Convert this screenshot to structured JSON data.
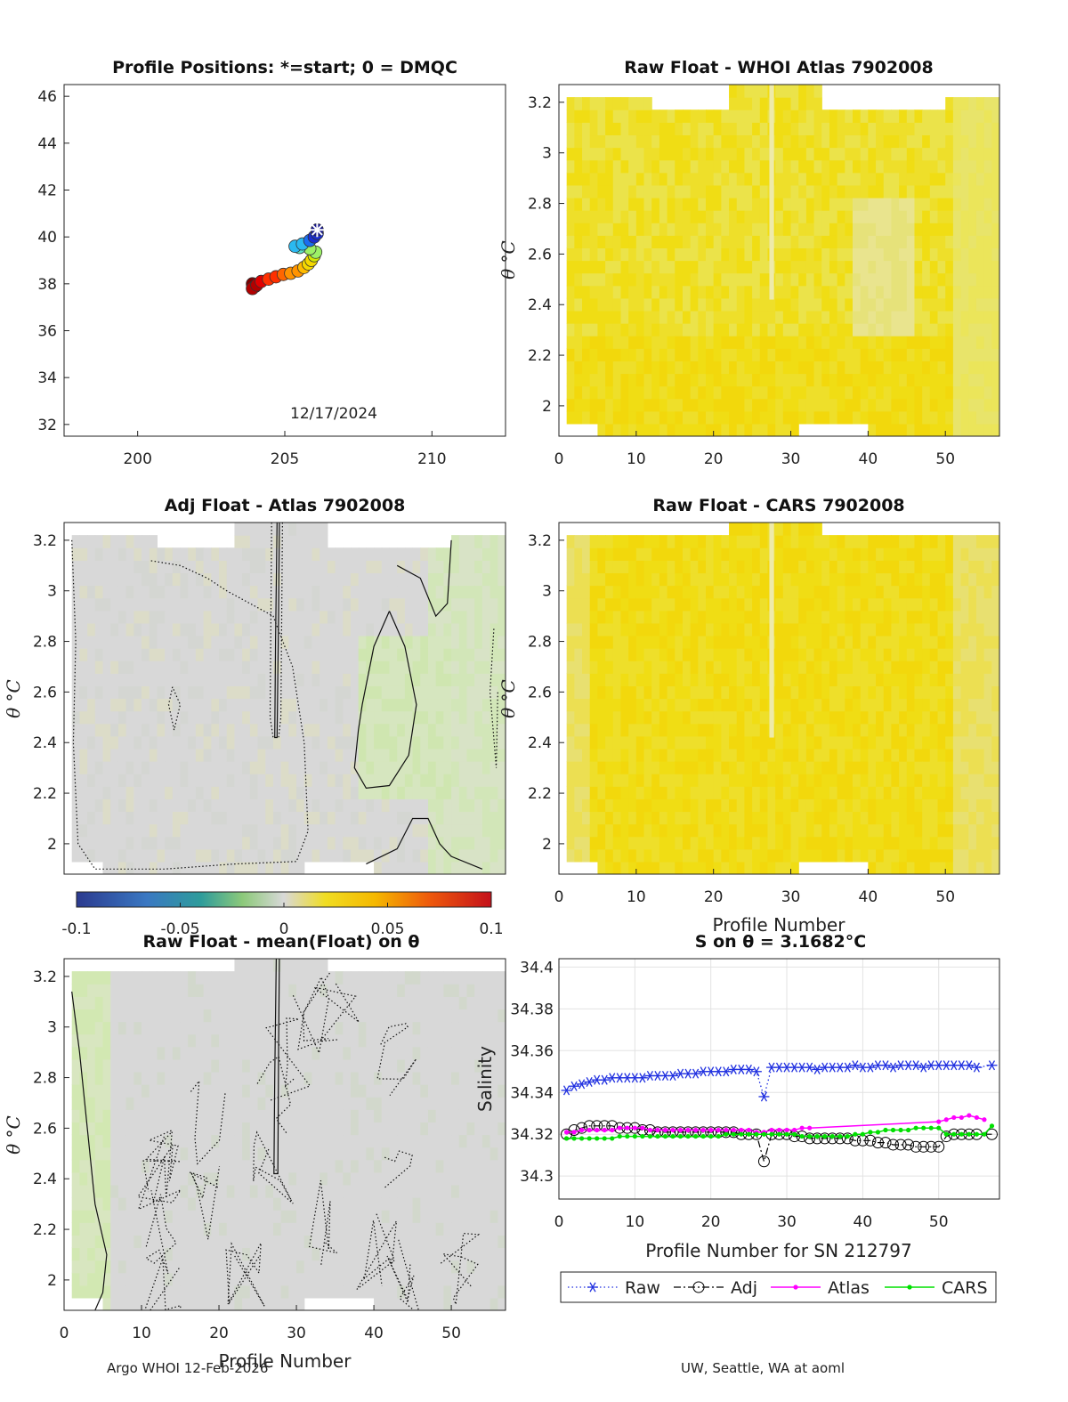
{
  "chart_data": [
    {
      "id": "positions",
      "type": "scatter",
      "title": "Profile Positions: *=start; 0 = DMQC",
      "xlim": [
        197.5,
        212.5
      ],
      "ylim": [
        31.5,
        46.5
      ],
      "xticks": [
        200,
        205,
        210
      ],
      "yticks": [
        32,
        34,
        36,
        38,
        40,
        42,
        44,
        46
      ],
      "date_label": "12/17/2024",
      "colormap": "jet",
      "start_point": {
        "x": 206.1,
        "y": 40.3
      },
      "track": [
        [
          206.1,
          40.3
        ],
        [
          206.1,
          40.15
        ],
        [
          206.0,
          40.0
        ],
        [
          205.85,
          39.85
        ],
        [
          205.6,
          39.7
        ],
        [
          205.35,
          39.6
        ],
        [
          205.5,
          39.55
        ],
        [
          205.85,
          39.5
        ],
        [
          206.05,
          39.35
        ],
        [
          206.0,
          39.2
        ],
        [
          205.9,
          39.0
        ],
        [
          205.8,
          38.85
        ],
        [
          205.65,
          38.7
        ],
        [
          205.45,
          38.55
        ],
        [
          205.2,
          38.45
        ],
        [
          204.95,
          38.4
        ],
        [
          204.7,
          38.3
        ],
        [
          204.45,
          38.2
        ],
        [
          204.2,
          38.1
        ],
        [
          204.05,
          37.95
        ],
        [
          203.9,
          37.8
        ],
        [
          204.0,
          37.9
        ],
        [
          203.9,
          38.0
        ]
      ]
    },
    {
      "id": "raw-atlas",
      "type": "heatmap",
      "title": "Raw Float - WHOI Atlas  7902008",
      "ylabel": "θ °C",
      "xlim": [
        0,
        57
      ],
      "ylim": [
        1.88,
        3.27
      ],
      "xticks": [
        0,
        10,
        20,
        30,
        40,
        50
      ],
      "yticks": [
        2,
        2.2,
        2.4,
        2.6,
        2.8,
        3,
        3.2
      ],
      "field_range": [
        1,
        57
      ],
      "base_level": 0.045,
      "max_level": 0.06,
      "gaps": [
        [
          12,
          23,
          3.17
        ],
        [
          34,
          50,
          3.17
        ]
      ],
      "missing_strip": [
        27,
        28
      ],
      "lighter_patch": [
        38,
        46,
        2.3,
        2.8
      ]
    },
    {
      "id": "adj-atlas",
      "type": "heatmap",
      "title": "Adj Float - Atlas  7902008",
      "ylabel": "θ °C",
      "xlim": [
        0,
        57
      ],
      "ylim": [
        1.88,
        3.27
      ],
      "xticks": [],
      "yticks": [
        2,
        2.2,
        2.4,
        2.6,
        2.8,
        3,
        3.2
      ],
      "base_level": 0.0,
      "colorbar": {
        "range": [
          -0.1,
          0.1
        ],
        "ticks": [
          -0.1,
          -0.05,
          0,
          0.05,
          0.1
        ]
      },
      "contours": "zero-and-±0.01 lines",
      "greenish_patch": [
        38,
        50,
        2.2,
        2.8
      ]
    },
    {
      "id": "raw-cars",
      "type": "heatmap",
      "title": "Raw Float - CARS  7902008",
      "xlabel": "Profile Number",
      "xlim": [
        0,
        57
      ],
      "ylim": [
        1.88,
        3.27
      ],
      "xticks": [
        0,
        10,
        20,
        30,
        40,
        50
      ],
      "yticks": [
        2,
        2.2,
        2.4,
        2.6,
        2.8,
        3,
        3.2
      ],
      "base_level": 0.05,
      "missing_strip": [
        27,
        28
      ]
    },
    {
      "id": "raw-mean",
      "type": "heatmap",
      "title": "Raw Float - mean(Float) on θ",
      "ylabel": "θ °C",
      "xlabel": "Profile Number",
      "xlim": [
        0,
        57
      ],
      "ylim": [
        1.88,
        3.27
      ],
      "xticks": [
        0,
        10,
        20,
        30,
        40,
        50
      ],
      "yticks": [
        2,
        2.2,
        2.4,
        2.6,
        2.8,
        3,
        3.2
      ],
      "base_level": 0.0,
      "greenish_band": [
        1,
        6
      ]
    },
    {
      "id": "salinity",
      "type": "line",
      "title": "S on θ = 3.1682°C",
      "xlabel": "Profile Number for SN 212797",
      "ylabel": "Salinity",
      "xlim": [
        0,
        58
      ],
      "ylim": [
        34.289,
        34.404
      ],
      "xticks": [
        0,
        10,
        20,
        30,
        40,
        50
      ],
      "yticks": [
        34.3,
        34.32,
        34.34,
        34.36,
        34.38,
        34.4
      ],
      "ytick_labels": [
        "34.3",
        "34.32",
        "34.34",
        "34.36",
        "34.38",
        "34.4"
      ],
      "grid": true,
      "legend_placement": "bottom",
      "series": [
        {
          "name": "Raw",
          "color": "#1f2fe0",
          "marker": "star",
          "x": [
            1,
            2,
            3,
            4,
            5,
            6,
            7,
            8,
            9,
            10,
            11,
            12,
            13,
            14,
            15,
            16,
            17,
            18,
            19,
            20,
            21,
            22,
            23,
            24,
            25,
            26,
            27,
            28,
            29,
            30,
            31,
            32,
            33,
            34,
            35,
            36,
            37,
            38,
            39,
            40,
            41,
            42,
            43,
            44,
            45,
            46,
            47,
            48,
            49,
            50,
            51,
            52,
            53,
            54,
            55,
            57
          ],
          "y": [
            34.341,
            34.343,
            34.344,
            34.345,
            34.346,
            34.346,
            34.347,
            34.347,
            34.347,
            34.347,
            34.347,
            34.348,
            34.348,
            34.348,
            34.348,
            34.349,
            34.349,
            34.349,
            34.35,
            34.35,
            34.35,
            34.35,
            34.351,
            34.351,
            34.351,
            34.35,
            34.338,
            34.352,
            34.352,
            34.352,
            34.352,
            34.352,
            34.352,
            34.351,
            34.352,
            34.352,
            34.352,
            34.352,
            34.353,
            34.352,
            34.352,
            34.353,
            34.353,
            34.352,
            34.353,
            34.353,
            34.353,
            34.352,
            34.353,
            34.353,
            34.353,
            34.353,
            34.353,
            34.353,
            34.352,
            34.353
          ]
        },
        {
          "name": "Adj",
          "color": "#000000",
          "marker": "circle",
          "x": [
            1,
            2,
            3,
            4,
            5,
            6,
            7,
            8,
            9,
            10,
            11,
            12,
            13,
            14,
            15,
            16,
            17,
            18,
            19,
            20,
            21,
            22,
            23,
            24,
            25,
            26,
            27,
            28,
            29,
            30,
            31,
            32,
            33,
            34,
            35,
            36,
            37,
            38,
            39,
            40,
            41,
            42,
            43,
            44,
            45,
            46,
            47,
            48,
            49,
            50,
            51,
            52,
            53,
            54,
            55,
            57
          ],
          "y": [
            34.32,
            34.322,
            34.323,
            34.324,
            34.324,
            34.324,
            34.324,
            34.323,
            34.323,
            34.323,
            34.322,
            34.322,
            34.321,
            34.321,
            34.321,
            34.321,
            34.321,
            34.321,
            34.321,
            34.321,
            34.321,
            34.321,
            34.321,
            34.32,
            34.32,
            34.32,
            34.307,
            34.32,
            34.32,
            34.32,
            34.319,
            34.319,
            34.318,
            34.318,
            34.318,
            34.318,
            34.318,
            34.318,
            34.317,
            34.317,
            34.317,
            34.316,
            34.316,
            34.315,
            34.315,
            34.315,
            34.314,
            34.314,
            34.314,
            34.314,
            34.319,
            34.32,
            34.32,
            34.32,
            34.32,
            34.32
          ]
        },
        {
          "name": "Atlas",
          "color": "#ff00ff",
          "marker": "dot",
          "x": [
            1,
            2,
            3,
            4,
            5,
            6,
            7,
            8,
            9,
            10,
            11,
            12,
            13,
            14,
            15,
            16,
            17,
            18,
            19,
            20,
            21,
            22,
            23,
            24,
            25,
            26,
            27,
            28,
            29,
            30,
            31,
            32,
            33,
            50,
            51,
            52,
            53,
            54,
            55,
            56
          ],
          "y": [
            34.321,
            34.321,
            34.322,
            34.322,
            34.322,
            34.322,
            34.322,
            34.323,
            34.323,
            34.323,
            34.323,
            34.322,
            34.322,
            34.322,
            34.322,
            34.322,
            34.322,
            34.322,
            34.322,
            34.322,
            34.322,
            34.322,
            34.322,
            34.322,
            34.322,
            34.321,
            34.321,
            34.322,
            34.322,
            34.322,
            34.322,
            34.323,
            34.323,
            34.326,
            34.327,
            34.328,
            34.328,
            34.329,
            34.328,
            34.327
          ]
        },
        {
          "name": "CARS",
          "color": "#00e000",
          "marker": "dot",
          "x": [
            1,
            2,
            3,
            4,
            5,
            6,
            7,
            8,
            9,
            10,
            11,
            12,
            13,
            14,
            15,
            16,
            17,
            18,
            19,
            20,
            21,
            22,
            23,
            24,
            25,
            26,
            27,
            28,
            29,
            30,
            31,
            32,
            33,
            34,
            35,
            36,
            37,
            38,
            39,
            40,
            41,
            42,
            43,
            44,
            45,
            46,
            47,
            48,
            49,
            50,
            51,
            52,
            53,
            54,
            55,
            56,
            57
          ],
          "y": [
            34.318,
            34.318,
            34.318,
            34.318,
            34.318,
            34.318,
            34.318,
            34.319,
            34.319,
            34.319,
            34.319,
            34.319,
            34.319,
            34.319,
            34.319,
            34.319,
            34.319,
            34.319,
            34.319,
            34.319,
            34.319,
            34.32,
            34.32,
            34.32,
            34.32,
            34.32,
            34.32,
            34.32,
            34.32,
            34.32,
            34.32,
            34.319,
            34.319,
            34.319,
            34.319,
            34.319,
            34.319,
            34.319,
            34.32,
            34.32,
            34.321,
            34.321,
            34.322,
            34.322,
            34.322,
            34.322,
            34.323,
            34.323,
            34.323,
            34.323,
            34.32,
            34.32,
            34.32,
            34.32,
            34.32,
            34.32,
            34.324
          ]
        }
      ]
    }
  ],
  "footer": {
    "left": "Argo WHOI 12-Feb-2026",
    "right": "UW, Seattle, WA at aoml"
  }
}
